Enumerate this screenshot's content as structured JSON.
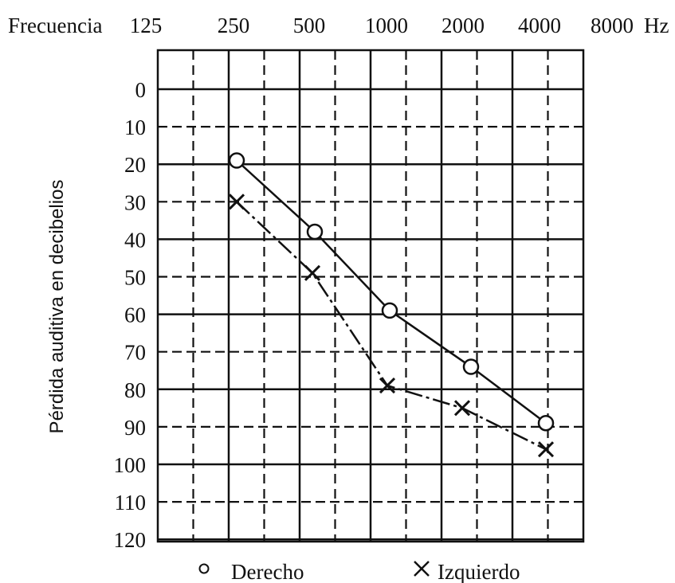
{
  "chart_data": {
    "type": "line",
    "x_axis_label": "Frecuencia",
    "x_unit": "Hz",
    "x_ticks": [
      "125",
      "250",
      "500",
      "1000",
      "2000",
      "4000",
      "8000"
    ],
    "ylabel": "Pérdida auditiva en decibelios",
    "y_ticks": [
      "0",
      "10",
      "20",
      "30",
      "40",
      "50",
      "60",
      "70",
      "80",
      "90",
      "100",
      "110",
      "120"
    ],
    "ylim": [
      -10,
      120
    ],
    "y_inverted": true,
    "x_scale": "log2",
    "grid": true,
    "legend_position": "bottom",
    "series": [
      {
        "name": "Derecho",
        "marker": "circle",
        "line_style": "solid",
        "x": [
          250,
          500,
          1000,
          2000,
          4000
        ],
        "y": [
          19,
          38,
          59,
          74,
          89
        ]
      },
      {
        "name": "Izquierdo",
        "marker": "cross",
        "line_style": "dashdot",
        "x": [
          250,
          500,
          1000,
          2000,
          4000
        ],
        "y": [
          30,
          49,
          79,
          85,
          96
        ]
      }
    ],
    "legend": {
      "circle_glyph": "○",
      "cross_glyph": "✕"
    }
  }
}
